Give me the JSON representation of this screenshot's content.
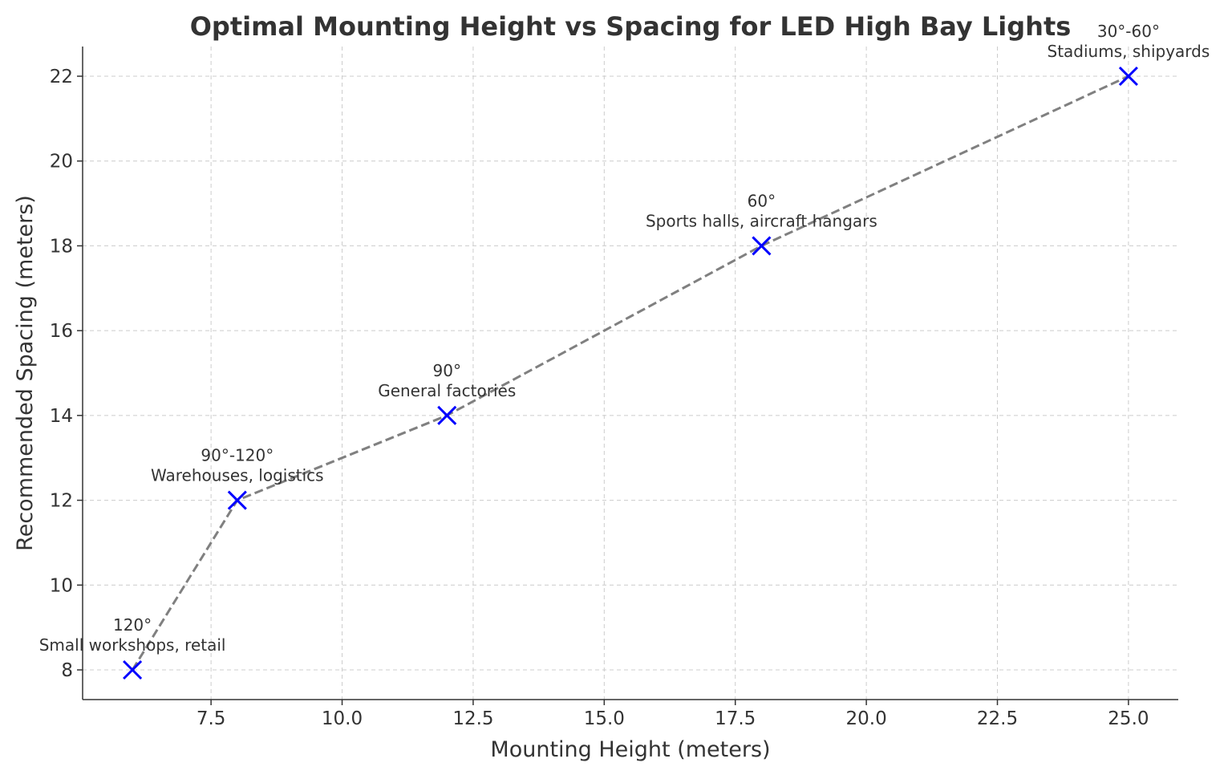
{
  "chart_data": {
    "type": "line",
    "title": "Optimal Mounting Height vs Spacing for LED High Bay Lights",
    "xlabel": "Mounting Height (meters)",
    "ylabel": "Recommended Spacing (meters)",
    "xlim": [
      5.05,
      25.95
    ],
    "ylim": [
      7.3,
      22.7
    ],
    "xticks": [
      7.5,
      10.0,
      12.5,
      15.0,
      17.5,
      20.0,
      22.5,
      25.0
    ],
    "xtick_labels": [
      "7.5",
      "10.0",
      "12.5",
      "15.0",
      "17.5",
      "20.0",
      "22.5",
      "25.0"
    ],
    "yticks": [
      8,
      10,
      12,
      14,
      16,
      18,
      20,
      22
    ],
    "ytick_labels": [
      "8",
      "10",
      "12",
      "14",
      "16",
      "18",
      "20",
      "22"
    ],
    "grid": true,
    "line_color": "#808080",
    "line_style": "dashed",
    "marker": "x",
    "marker_color": "#0000ff",
    "points": [
      {
        "x": 6,
        "y": 8,
        "angle": "120°",
        "application": "Small workshops, retail"
      },
      {
        "x": 8,
        "y": 12,
        "angle": "90°-120°",
        "application": "Warehouses, logistics"
      },
      {
        "x": 12,
        "y": 14,
        "angle": "90°",
        "application": "General factories"
      },
      {
        "x": 18,
        "y": 18,
        "angle": "60°",
        "application": "Sports halls, aircraft hangars"
      },
      {
        "x": 25,
        "y": 22,
        "angle": "30°-60°",
        "application": "Stadiums, shipyards"
      }
    ]
  }
}
